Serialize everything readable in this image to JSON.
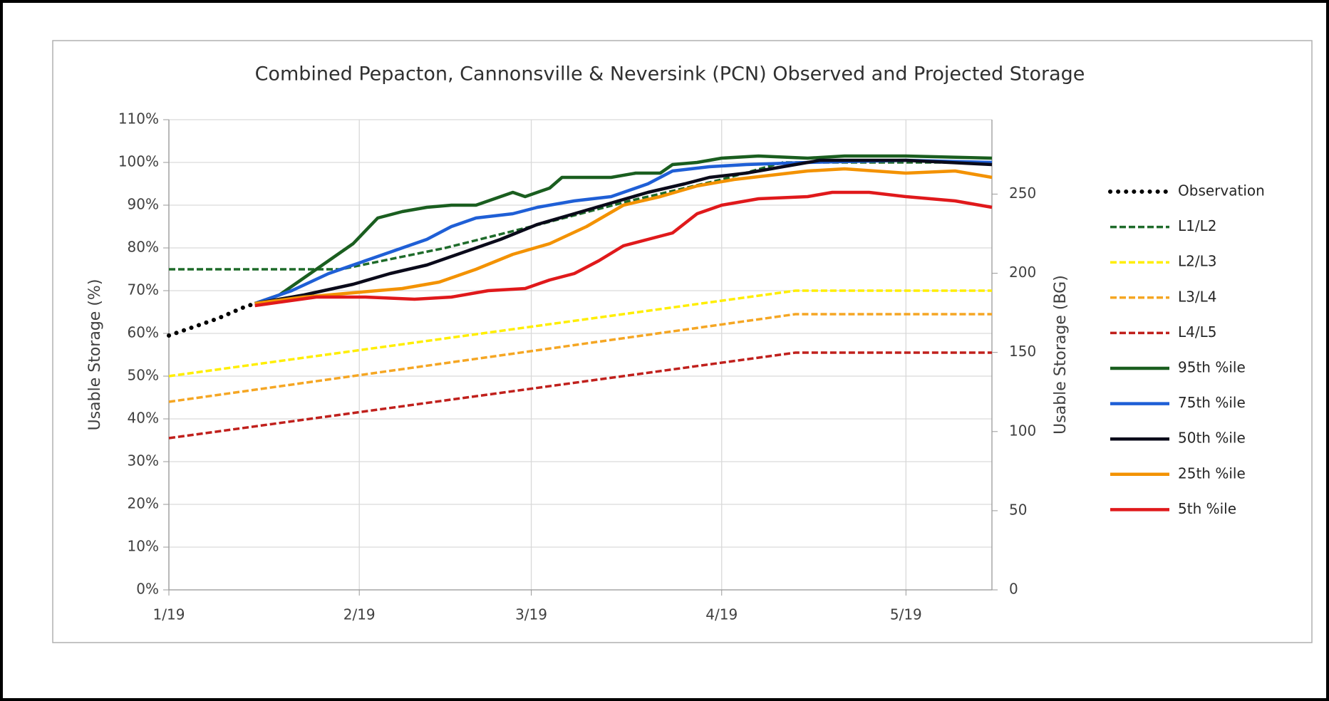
{
  "chart_data": {
    "type": "line",
    "title": "Combined Pepacton, Cannonsville & Neversink (PCN) Observed and Projected Storage",
    "ylabel": "Usable Storage (%)",
    "y2label": "Usable Storage (BG)",
    "xlim": [
      0,
      134
    ],
    "xticks": [
      {
        "value": 0,
        "label": "1/19"
      },
      {
        "value": 31,
        "label": "2/19"
      },
      {
        "value": 59,
        "label": "3/19"
      },
      {
        "value": 90,
        "label": "4/19"
      },
      {
        "value": 120,
        "label": "5/19"
      }
    ],
    "ylim": [
      0,
      110
    ],
    "yticks": [
      {
        "value": 0,
        "label": "0%"
      },
      {
        "value": 10,
        "label": "10%"
      },
      {
        "value": 20,
        "label": "20%"
      },
      {
        "value": 30,
        "label": "30%"
      },
      {
        "value": 40,
        "label": "40%"
      },
      {
        "value": 50,
        "label": "50%"
      },
      {
        "value": 60,
        "label": "60%"
      },
      {
        "value": 70,
        "label": "70%"
      },
      {
        "value": 80,
        "label": "80%"
      },
      {
        "value": 90,
        "label": "90%"
      },
      {
        "value": 100,
        "label": "100%"
      },
      {
        "value": 110,
        "label": "110%"
      }
    ],
    "y2lim": [
      0,
      297
    ],
    "y2ticks": [
      0,
      50,
      100,
      150,
      200,
      250
    ],
    "grid": true,
    "legend": "right",
    "series": [
      {
        "name": "Observation",
        "color": "#000000",
        "style": "dotted",
        "x": [
          0,
          4,
          8,
          12,
          14
        ],
        "values": [
          59.5,
          61.5,
          63.5,
          66,
          67
        ]
      },
      {
        "name": "L1/L2",
        "color": "#1e6b2a",
        "style": "dashed",
        "x": [
          0,
          28,
          45,
          59,
          75,
          90,
          100,
          134
        ],
        "values": [
          75,
          75,
          80,
          85,
          91,
          96,
          100,
          100
        ]
      },
      {
        "name": "L2/L3",
        "color": "#ffee00",
        "style": "dashed",
        "x": [
          0,
          102,
          134
        ],
        "values": [
          50,
          70,
          70
        ]
      },
      {
        "name": "L3/L4",
        "color": "#f5a623",
        "style": "dashed",
        "x": [
          0,
          102,
          134
        ],
        "values": [
          44,
          64.5,
          64.5
        ]
      },
      {
        "name": "L4/L5",
        "color": "#c0201c",
        "style": "dashed",
        "x": [
          0,
          102,
          134
        ],
        "values": [
          35.5,
          55.5,
          55.5
        ]
      },
      {
        "name": "95th %ile",
        "color": "#1a5e1f",
        "style": "solid",
        "x": [
          14,
          18,
          22,
          26,
          30,
          34,
          38,
          42,
          46,
          50,
          54,
          56,
          58,
          62,
          64,
          68,
          72,
          76,
          80,
          82,
          86,
          90,
          96,
          104,
          110,
          120,
          134
        ],
        "values": [
          67,
          69,
          73,
          77,
          81,
          87,
          88.5,
          89.5,
          90,
          90,
          92,
          93,
          92,
          94,
          96.5,
          96.5,
          96.5,
          97.5,
          97.5,
          99.5,
          100,
          101,
          101.5,
          101,
          101.5,
          101.5,
          101
        ]
      },
      {
        "name": "75th %ile",
        "color": "#1f5fd6",
        "style": "solid",
        "x": [
          14,
          20,
          26,
          30,
          36,
          42,
          46,
          50,
          56,
          60,
          66,
          72,
          78,
          82,
          88,
          94,
          104,
          120,
          134
        ],
        "values": [
          67,
          70,
          74,
          76,
          79,
          82,
          85,
          87,
          88,
          89.5,
          91,
          92,
          95,
          98,
          99,
          99.5,
          100,
          100.5,
          100
        ]
      },
      {
        "name": "50th %ile",
        "color": "#0a0a1a",
        "style": "solid",
        "x": [
          14,
          22,
          30,
          36,
          42,
          48,
          54,
          60,
          66,
          72,
          78,
          84,
          88,
          94,
          100,
          106,
          120,
          134
        ],
        "values": [
          67,
          69,
          71.5,
          74,
          76,
          79,
          82,
          85.5,
          88,
          90.5,
          93,
          95,
          96.5,
          97.5,
          99,
          100.5,
          100.5,
          99.5
        ]
      },
      {
        "name": "25th %ile",
        "color": "#f39200",
        "style": "solid",
        "x": [
          14,
          22,
          30,
          38,
          44,
          50,
          56,
          62,
          68,
          74,
          80,
          86,
          92,
          98,
          104,
          110,
          120,
          128,
          134
        ],
        "values": [
          67,
          68.5,
          69.5,
          70.5,
          72,
          75,
          78.5,
          81,
          85,
          90,
          92,
          94.5,
          96,
          97,
          98,
          98.5,
          97.5,
          98,
          96.5
        ]
      },
      {
        "name": "5th %ile",
        "color": "#e0191b",
        "style": "solid",
        "x": [
          14,
          24,
          32,
          40,
          46,
          52,
          58,
          62,
          66,
          70,
          74,
          78,
          82,
          86,
          90,
          96,
          104,
          108,
          114,
          120,
          128,
          134
        ],
        "values": [
          66.5,
          68.5,
          68.5,
          68,
          68.5,
          70,
          70.5,
          72.5,
          74,
          77,
          80.5,
          82,
          83.5,
          88,
          90,
          91.5,
          92,
          93,
          93,
          92,
          91,
          89.5
        ]
      }
    ]
  }
}
